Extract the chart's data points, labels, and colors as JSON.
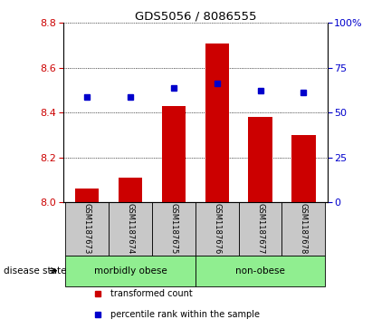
{
  "title": "GDS5056 / 8086555",
  "samples": [
    "GSM1187673",
    "GSM1187674",
    "GSM1187675",
    "GSM1187676",
    "GSM1187677",
    "GSM1187678"
  ],
  "red_values": [
    8.06,
    8.11,
    8.43,
    8.71,
    8.38,
    8.3
  ],
  "blue_values_left": [
    8.47,
    8.47,
    8.51,
    8.53,
    8.5,
    8.49
  ],
  "bar_bottom": 8.0,
  "ylim_left": [
    8.0,
    8.8
  ],
  "yticks_left": [
    8.0,
    8.2,
    8.4,
    8.6,
    8.8
  ],
  "yticks_right_labels": [
    "0",
    "25",
    "50",
    "75",
    "100%"
  ],
  "bar_color": "#CC0000",
  "dot_color": "#0000CC",
  "label_box_color": "#C8C8C8",
  "group_color": "#90EE90",
  "legend_red_label": "transformed count",
  "legend_blue_label": "percentile rank within the sample",
  "disease_state_label": "disease state",
  "groups": [
    {
      "label": "morbidly obese",
      "start": 0,
      "end": 2
    },
    {
      "label": "non-obese",
      "start": 3,
      "end": 5
    }
  ]
}
